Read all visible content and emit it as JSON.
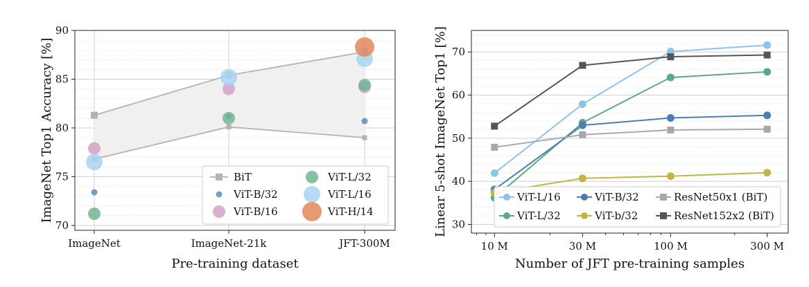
{
  "chart_data": [
    {
      "type": "scatter",
      "xlabel": "Pre-training dataset",
      "ylabel": "ImageNet Top1 Accuracy [%]",
      "categories": [
        "ImageNet",
        "ImageNet-21k",
        "JFT-300M"
      ],
      "ylim": [
        69.5,
        90
      ],
      "yticks": [
        70,
        75,
        80,
        85,
        90
      ],
      "grid": true,
      "legend_position": "bottom-right",
      "bit_band": {
        "upper": [
          81.3,
          85.4,
          87.8
        ],
        "lower": [
          76.8,
          80.1,
          79.0
        ]
      },
      "series": [
        {
          "name": "BiT",
          "marker": "square",
          "color": "#b3b3b3",
          "values": []
        },
        {
          "name": "ViT-B/32",
          "color": "#5b8db8",
          "size": "small",
          "values": [
            73.4,
            81.2,
            80.7
          ]
        },
        {
          "name": "ViT-B/16",
          "color": "#d4a2c8",
          "size": "medium",
          "values": [
            77.9,
            84.0,
            84.2
          ]
        },
        {
          "name": "ViT-L/32",
          "color": "#73b594",
          "size": "medium",
          "values": [
            71.2,
            81.0,
            84.4
          ]
        },
        {
          "name": "ViT-L/16",
          "color": "#a8d4f0",
          "size": "large",
          "values": [
            76.5,
            85.2,
            87.1
          ]
        },
        {
          "name": "ViT-H/14",
          "color": "#e0885a",
          "size": "xlarge",
          "values": [
            null,
            null,
            88.3
          ]
        }
      ]
    },
    {
      "type": "line",
      "xlabel": "Number of JFT pre-training samples",
      "ylabel": "Linear 5-shot ImageNet Top1 [%]",
      "x": [
        10,
        30,
        90,
        300
      ],
      "xscale": "log",
      "xticklabels": [
        "10 M",
        "30 M",
        "100 M",
        "300 M"
      ],
      "ylim": [
        28,
        75
      ],
      "yticks": [
        30,
        40,
        50,
        60,
        70
      ],
      "grid": true,
      "legend_position": "bottom-right",
      "series": [
        {
          "name": "ViT-L/16",
          "color": "#8ec4ea",
          "marker": "circle",
          "values": [
            41.9,
            57.9,
            70.1,
            71.6
          ]
        },
        {
          "name": "ViT-L/32",
          "color": "#5ea889",
          "marker": "circle",
          "values": [
            36.2,
            53.6,
            64.1,
            65.4
          ]
        },
        {
          "name": "ViT-B/32",
          "color": "#4a7fb0",
          "marker": "circle",
          "values": [
            38.1,
            53.0,
            54.7,
            55.3
          ]
        },
        {
          "name": "ViT-b/32",
          "color": "#c4b446",
          "marker": "circle",
          "values": [
            37.4,
            40.7,
            41.2,
            42.0
          ]
        },
        {
          "name": "ResNet50x1 (BiT)",
          "color": "#a8a8a8",
          "marker": "square",
          "values": [
            47.9,
            50.8,
            51.9,
            52.1
          ]
        },
        {
          "name": "ResNet152x2 (BiT)",
          "color": "#555555",
          "marker": "square",
          "values": [
            52.8,
            66.9,
            68.9,
            69.3
          ]
        }
      ]
    }
  ]
}
